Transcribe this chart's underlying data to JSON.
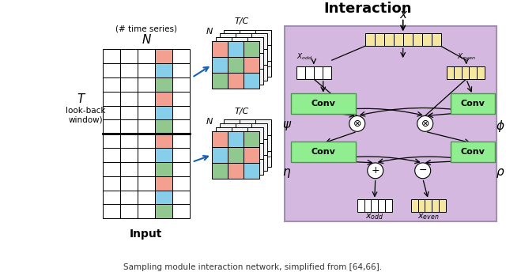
{
  "title_interaction": "Interaction",
  "label_x_input": "x",
  "label_N": "N",
  "label_N_desc": "(# time series)",
  "label_T": "T",
  "label_T_desc1": "look-back",
  "label_T_desc2": "window)",
  "label_Input": "Input",
  "label_C": "C",
  "label_TC": "T/C",
  "label_xodd": "$x_{odd}$",
  "label_xeven": "$x_{even}$",
  "label_Xodd": "$X_{odd}$",
  "label_Xeven": "$X_{even}$",
  "label_Xodd2": "$X_{odd}$",
  "label_psi": "$\\psi$",
  "label_phi": "$\\phi$",
  "label_eta": "$\\eta$",
  "label_rho": "$\\rho$",
  "color_bg": "#ffffff",
  "color_purple_bg": "#d4b8e0",
  "color_green_box": "#90EE90",
  "color_green_box_dark": "#7EC87E",
  "color_salmon": "#F4A090",
  "color_blue": "#87CEEB",
  "color_green_cell": "#90C890",
  "color_yellow": "#F5E6A0",
  "color_white": "#ffffff",
  "color_arrow": "#1a5fb4",
  "color_black": "#000000",
  "color_gray": "#888888"
}
